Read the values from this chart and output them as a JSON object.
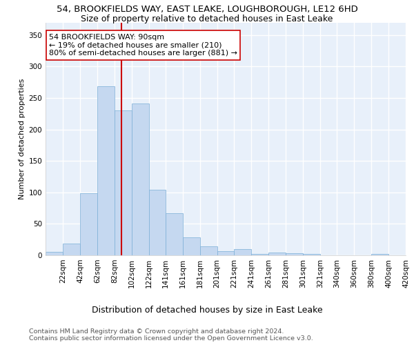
{
  "title": "54, BROOKFIELDS WAY, EAST LEAKE, LOUGHBOROUGH, LE12 6HD",
  "subtitle": "Size of property relative to detached houses in East Leake",
  "xlabel": "Distribution of detached houses by size in East Leake",
  "ylabel": "Number of detached properties",
  "bar_color": "#c5d8f0",
  "bar_edge_color": "#7aaed6",
  "background_color": "#e8f0fa",
  "grid_color": "#ffffff",
  "vline_x": 90,
  "vline_color": "#cc0000",
  "annotation_text": "54 BROOKFIELDS WAY: 90sqm\n← 19% of detached houses are smaller (210)\n80% of semi-detached houses are larger (881) →",
  "annotation_box_color": "#ffffff",
  "annotation_box_edge": "#cc0000",
  "bin_edges": [
    2,
    22,
    42,
    62,
    82,
    102,
    122,
    141,
    161,
    181,
    201,
    221,
    241,
    261,
    281,
    301,
    321,
    340,
    360,
    380,
    400,
    420
  ],
  "bar_heights": [
    6,
    19,
    99,
    269,
    230,
    241,
    104,
    67,
    29,
    14,
    7,
    10,
    2,
    4,
    3,
    2,
    0,
    0,
    0,
    2,
    0
  ],
  "xtick_labels": [
    "22sqm",
    "42sqm",
    "62sqm",
    "82sqm",
    "102sqm",
    "122sqm",
    "141sqm",
    "161sqm",
    "181sqm",
    "201sqm",
    "221sqm",
    "241sqm",
    "261sqm",
    "281sqm",
    "301sqm",
    "321sqm",
    "340sqm",
    "360sqm",
    "380sqm",
    "400sqm",
    "420sqm"
  ],
  "ylim": [
    0,
    370
  ],
  "ytick_vals": [
    0,
    50,
    100,
    150,
    200,
    250,
    300,
    350
  ],
  "footer_text": "Contains HM Land Registry data © Crown copyright and database right 2024.\nContains public sector information licensed under the Open Government Licence v3.0.",
  "title_fontsize": 9.5,
  "subtitle_fontsize": 9,
  "xlabel_fontsize": 9,
  "ylabel_fontsize": 8,
  "tick_fontsize": 7.5,
  "annotation_fontsize": 8,
  "footer_fontsize": 6.8
}
